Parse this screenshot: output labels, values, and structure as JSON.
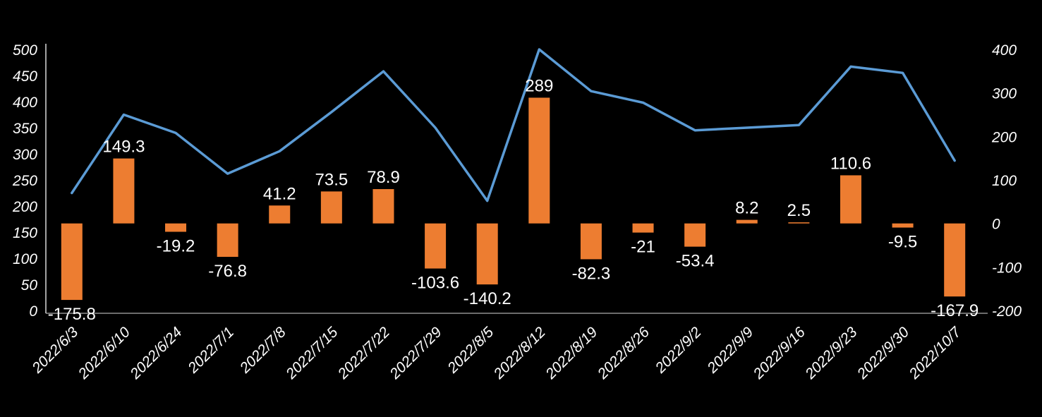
{
  "chart_data": {
    "type": "bar",
    "subtype": "combo-bar-line",
    "title": "",
    "background_color": "#000000",
    "text_color": "#ffffff",
    "grid": false,
    "legend": "none",
    "categories": [
      "2022/6/3",
      "2022/6/10",
      "2022/6/24",
      "2022/7/1",
      "2022/7/8",
      "2022/7/15",
      "2022/7/22",
      "2022/7/29",
      "2022/8/5",
      "2022/8/12",
      "2022/8/19",
      "2022/8/26",
      "2022/9/2",
      "2022/9/9",
      "2022/9/16",
      "2022/9/23",
      "2022/9/30",
      "2022/10/7"
    ],
    "series": [
      {
        "name": "bar-series",
        "type": "bar",
        "axis": "right",
        "color": "#ED7D31",
        "values": [
          -175.8,
          149.3,
          -19.2,
          -76.8,
          41.2,
          73.5,
          78.9,
          -103.6,
          -140.2,
          289,
          -82.3,
          -21,
          -53.4,
          8.2,
          2.5,
          110.6,
          -9.5,
          -167.9
        ],
        "labels": [
          "-175.8",
          "149.3",
          "-19.2",
          "-76.8",
          "41.2",
          "73.5",
          "78.9",
          "-103.6",
          "-140.2",
          "289",
          "-82.3",
          "-21",
          "-53.4",
          "8.2",
          "2.5",
          "110.6",
          "-9.5",
          "-167.9"
        ]
      },
      {
        "name": "line-series",
        "type": "line",
        "axis": "left",
        "color": "#5B9BD5",
        "values": [
          225,
          375,
          340,
          262,
          305,
          380,
          458,
          350,
          210,
          500,
          420,
          398,
          345,
          350,
          355,
          467,
          455,
          287
        ]
      }
    ],
    "left_axis": {
      "min": 0,
      "max": 500,
      "step": 50,
      "ticks": [
        "0",
        "50",
        "100",
        "150",
        "200",
        "250",
        "300",
        "350",
        "400",
        "450",
        "500"
      ]
    },
    "right_axis": {
      "min": -200,
      "max": 400,
      "step": 100,
      "ticks": [
        "-200",
        "-100",
        "0",
        "100",
        "200",
        "300",
        "400"
      ]
    },
    "axis_line_color": "#d9d9d9"
  }
}
